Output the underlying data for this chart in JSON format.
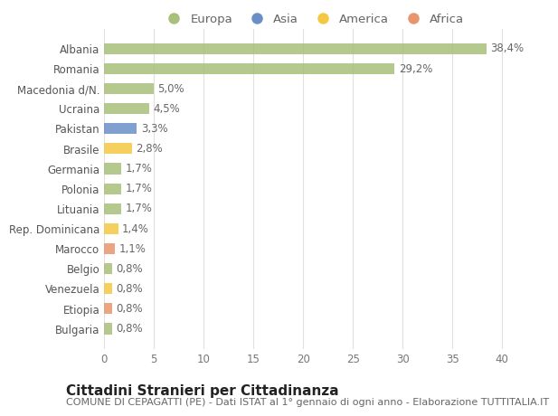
{
  "countries": [
    "Albania",
    "Romania",
    "Macedonia d/N.",
    "Ucraina",
    "Pakistan",
    "Brasile",
    "Germania",
    "Polonia",
    "Lituania",
    "Rep. Dominicana",
    "Marocco",
    "Belgio",
    "Venezuela",
    "Etiopia",
    "Bulgaria"
  ],
  "values": [
    38.4,
    29.2,
    5.0,
    4.5,
    3.3,
    2.8,
    1.7,
    1.7,
    1.7,
    1.4,
    1.1,
    0.8,
    0.8,
    0.8,
    0.8
  ],
  "labels": [
    "38,4%",
    "29,2%",
    "5,0%",
    "4,5%",
    "3,3%",
    "2,8%",
    "1,7%",
    "1,7%",
    "1,7%",
    "1,4%",
    "1,1%",
    "0,8%",
    "0,8%",
    "0,8%",
    "0,8%"
  ],
  "continents": [
    "Europa",
    "Europa",
    "Europa",
    "Europa",
    "Asia",
    "America",
    "Europa",
    "Europa",
    "Europa",
    "America",
    "Africa",
    "Europa",
    "America",
    "Africa",
    "Europa"
  ],
  "continent_colors": {
    "Europa": "#a8c07a",
    "Asia": "#6a8fc8",
    "America": "#f5c842",
    "Africa": "#e8956d"
  },
  "xlim": [
    0,
    42
  ],
  "xticks": [
    0,
    5,
    10,
    15,
    20,
    25,
    30,
    35,
    40
  ],
  "title": "Cittadini Stranieri per Cittadinanza",
  "subtitle": "COMUNE DI CEPAGATTI (PE) - Dati ISTAT al 1° gennaio di ogni anno - Elaborazione TUTTITALIA.IT",
  "background_color": "#ffffff",
  "grid_color": "#e0e0e0",
  "bar_height": 0.55,
  "title_fontsize": 11,
  "subtitle_fontsize": 8,
  "tick_label_fontsize": 8.5,
  "value_label_fontsize": 8.5,
  "legend_entries": [
    "Europa",
    "Asia",
    "America",
    "Africa"
  ]
}
